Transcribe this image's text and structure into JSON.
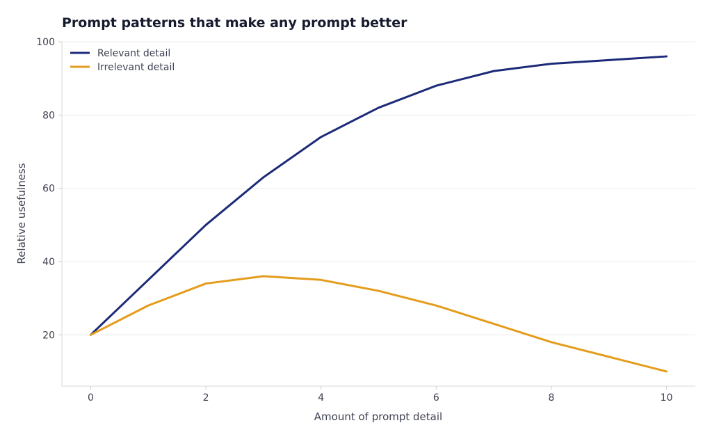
{
  "chart_data": {
    "type": "line",
    "title": "Prompt patterns that make any prompt better",
    "xlabel": "Amount of prompt detail",
    "ylabel": "Relative usefulness",
    "x": [
      0,
      1,
      2,
      3,
      4,
      5,
      6,
      7,
      8,
      9,
      10
    ],
    "xlim": [
      -0.5,
      10.5
    ],
    "ylim": [
      6,
      100
    ],
    "xticks": [
      0,
      2,
      4,
      6,
      8,
      10
    ],
    "yticks": [
      20,
      40,
      60,
      80,
      100
    ],
    "grid": true,
    "legend_position": "top-left",
    "series": [
      {
        "name": "Relevant detail",
        "color": "#1c2a78",
        "values": [
          20,
          35,
          50,
          63,
          74,
          82,
          88,
          92,
          94,
          95,
          96
        ]
      },
      {
        "name": "Irrelevant detail",
        "color": "#e49c1c",
        "values": [
          20,
          28,
          34,
          36,
          35,
          32,
          28,
          23,
          18,
          14,
          10
        ]
      }
    ]
  }
}
